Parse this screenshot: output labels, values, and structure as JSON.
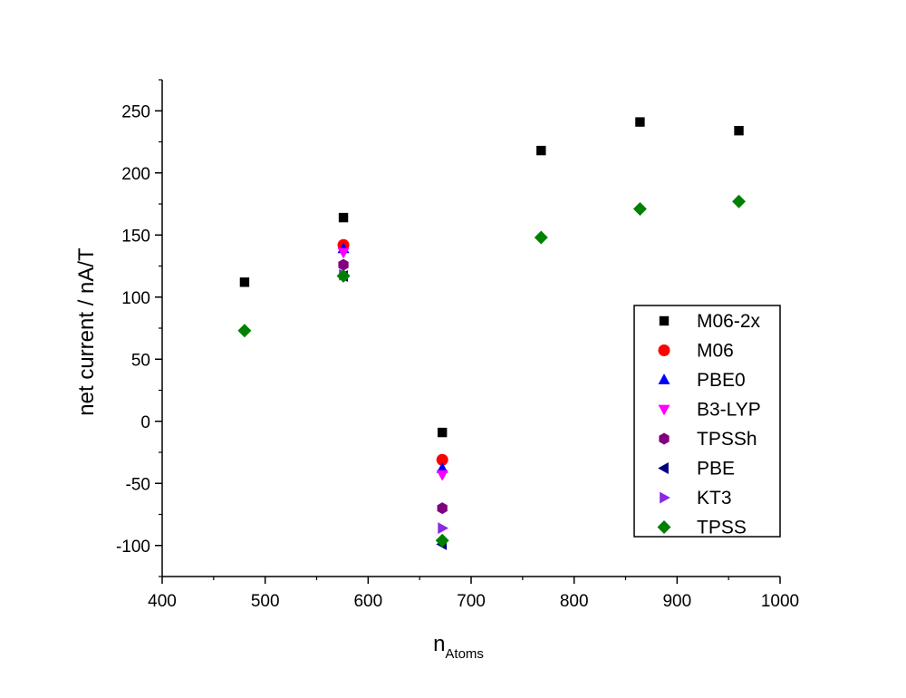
{
  "chart_data": {
    "type": "scatter",
    "xlabel": "n",
    "xlabel_subscript": "Atoms",
    "ylabel": "net current / nA/T",
    "xlim": [
      400,
      1000
    ],
    "ylim": [
      -125,
      275
    ],
    "x_ticks": [
      400,
      500,
      600,
      700,
      800,
      900,
      1000
    ],
    "y_ticks": [
      -100,
      -50,
      0,
      50,
      100,
      150,
      200,
      250
    ],
    "grid": false,
    "legend_position": "right",
    "series": [
      {
        "name": "M06-2x",
        "marker": "square",
        "color": "#000000",
        "points": [
          [
            480,
            112
          ],
          [
            576,
            164
          ],
          [
            672,
            -9
          ],
          [
            768,
            218
          ],
          [
            864,
            241
          ],
          [
            960,
            234
          ]
        ]
      },
      {
        "name": "M06",
        "marker": "circle",
        "color": "#ff0000",
        "points": [
          [
            576,
            142
          ],
          [
            672,
            -31
          ]
        ]
      },
      {
        "name": "PBE0",
        "marker": "triangle-up",
        "color": "#0000ff",
        "points": [
          [
            576,
            139
          ],
          [
            672,
            -38
          ]
        ]
      },
      {
        "name": "B3-LYP",
        "marker": "triangle-down",
        "color": "#ff00ff",
        "points": [
          [
            576,
            136
          ],
          [
            672,
            -43
          ]
        ]
      },
      {
        "name": "TPSSh",
        "marker": "hexagon",
        "color": "#800080",
        "points": [
          [
            576,
            126
          ],
          [
            672,
            -70
          ]
        ]
      },
      {
        "name": "PBE",
        "marker": "triangle-left",
        "color": "#000080",
        "points": [
          [
            576,
            117
          ],
          [
            672,
            -99
          ]
        ]
      },
      {
        "name": "KT3",
        "marker": "triangle-right",
        "color": "#8a2be2",
        "points": [
          [
            576,
            118
          ],
          [
            672,
            -86
          ]
        ]
      },
      {
        "name": "TPSS",
        "marker": "diamond",
        "color": "#008000",
        "points": [
          [
            480,
            73
          ],
          [
            576,
            117
          ],
          [
            672,
            -96
          ],
          [
            768,
            148
          ],
          [
            864,
            171
          ],
          [
            960,
            177
          ]
        ]
      }
    ]
  }
}
